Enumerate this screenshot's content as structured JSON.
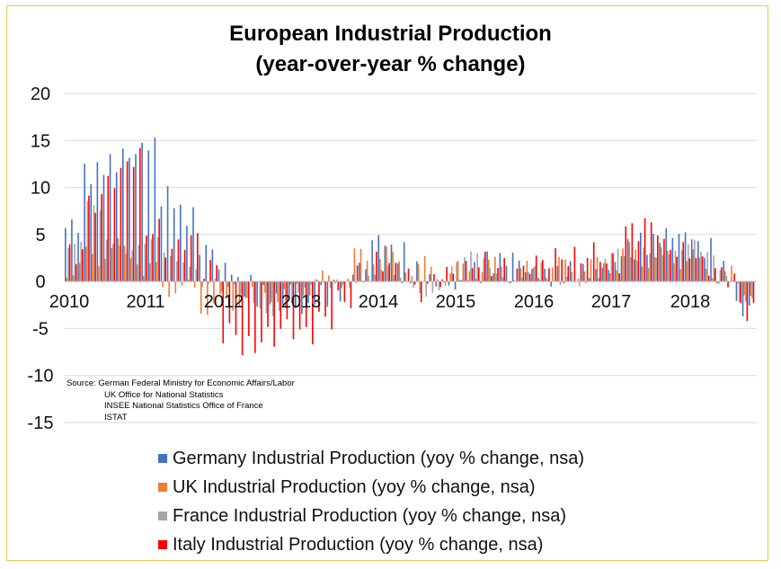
{
  "title_line1": "European Industrial Production",
  "title_line2": "(year-over-year % change)",
  "source": {
    "line1": "Source: German Federal Ministry for Economic Affairs/Labor",
    "line2": "UK Office for National Statistics",
    "line3": "INSEE National Statistics Office of France",
    "line4": "ISTAT"
  },
  "legend": [
    {
      "label": "Germany Industrial Production (yoy % change, nsa)",
      "color": "#4472c4"
    },
    {
      "label": "UK Industrial Production (yoy % change, nsa)",
      "color": "#ed7d31"
    },
    {
      "label": "France Industrial Production (yoy % change, nsa)",
      "color": "#a5a5a5"
    },
    {
      "label": "Italy Industrial Production (yoy % change, nsa)",
      "color": "#ff0000"
    }
  ],
  "chart_data": {
    "type": "bar",
    "title": "European Industrial Production (year-over-year % change)",
    "xlabel": "",
    "ylabel": "",
    "ylim": [
      -15,
      20
    ],
    "yticks": [
      20,
      15,
      10,
      5,
      0,
      -5,
      -10,
      -15
    ],
    "year_labels": [
      "2010",
      "2011",
      "2012",
      "2013",
      "2014",
      "2015",
      "2016",
      "2017",
      "2018"
    ],
    "period": "monthly, Jan 2010 - Dec 2018",
    "series": [
      {
        "name": "Germany",
        "color": "#4472c4",
        "quarterly_avg": [
          6.0,
          11.5,
          12.5,
          13.5,
          14.5,
          9.0,
          7.0,
          3.5,
          1.5,
          -0.5,
          -1.5,
          -2.0,
          -3.0,
          -1.5,
          -1.0,
          1.5,
          4.5,
          3.0,
          1.0,
          0.0,
          -0.5,
          1.0,
          2.0,
          2.5,
          1.0,
          0.5,
          1.0,
          1.0,
          1.5,
          3.5,
          4.0,
          5.0,
          5.0,
          3.5,
          1.0,
          -3.0
        ]
      },
      {
        "name": "UK",
        "color": "#ed7d31",
        "quarterly_avg": [
          1.5,
          2.5,
          3.5,
          3.0,
          1.0,
          -0.5,
          -1.0,
          -2.5,
          -2.5,
          -1.5,
          -1.0,
          -1.5,
          -0.5,
          0.0,
          0.5,
          2.5,
          3.0,
          2.0,
          1.5,
          1.0,
          1.0,
          1.5,
          1.5,
          1.0,
          1.0,
          1.5,
          1.5,
          1.5,
          2.0,
          3.0,
          2.5,
          2.5,
          2.5,
          1.5,
          0.5,
          -0.5
        ]
      },
      {
        "name": "France",
        "color": "#a5a5a5",
        "quarterly_avg": [
          3.0,
          7.5,
          5.0,
          4.0,
          3.5,
          2.0,
          2.5,
          0.5,
          -1.5,
          -2.5,
          -2.5,
          -2.0,
          -1.5,
          -1.0,
          0.5,
          1.0,
          0.5,
          -0.5,
          -0.5,
          0.0,
          1.5,
          2.0,
          1.5,
          1.0,
          1.0,
          -1.0,
          0.5,
          1.0,
          2.5,
          1.5,
          3.5,
          4.0,
          3.5,
          2.0,
          1.0,
          -1.0
        ]
      },
      {
        "name": "Italy",
        "color": "#ff0000",
        "quarterly_avg": [
          3.0,
          8.5,
          11.0,
          13.0,
          5.5,
          3.5,
          4.5,
          1.5,
          -5.5,
          -7.0,
          -6.0,
          -5.0,
          -5.5,
          -4.0,
          -2.0,
          0.5,
          2.0,
          1.0,
          -1.0,
          0.5,
          1.0,
          2.0,
          1.5,
          1.0,
          2.0,
          2.5,
          2.5,
          3.0,
          2.0,
          5.5,
          6.0,
          3.5,
          3.0,
          1.5,
          0.5,
          -3.0
        ]
      }
    ]
  }
}
